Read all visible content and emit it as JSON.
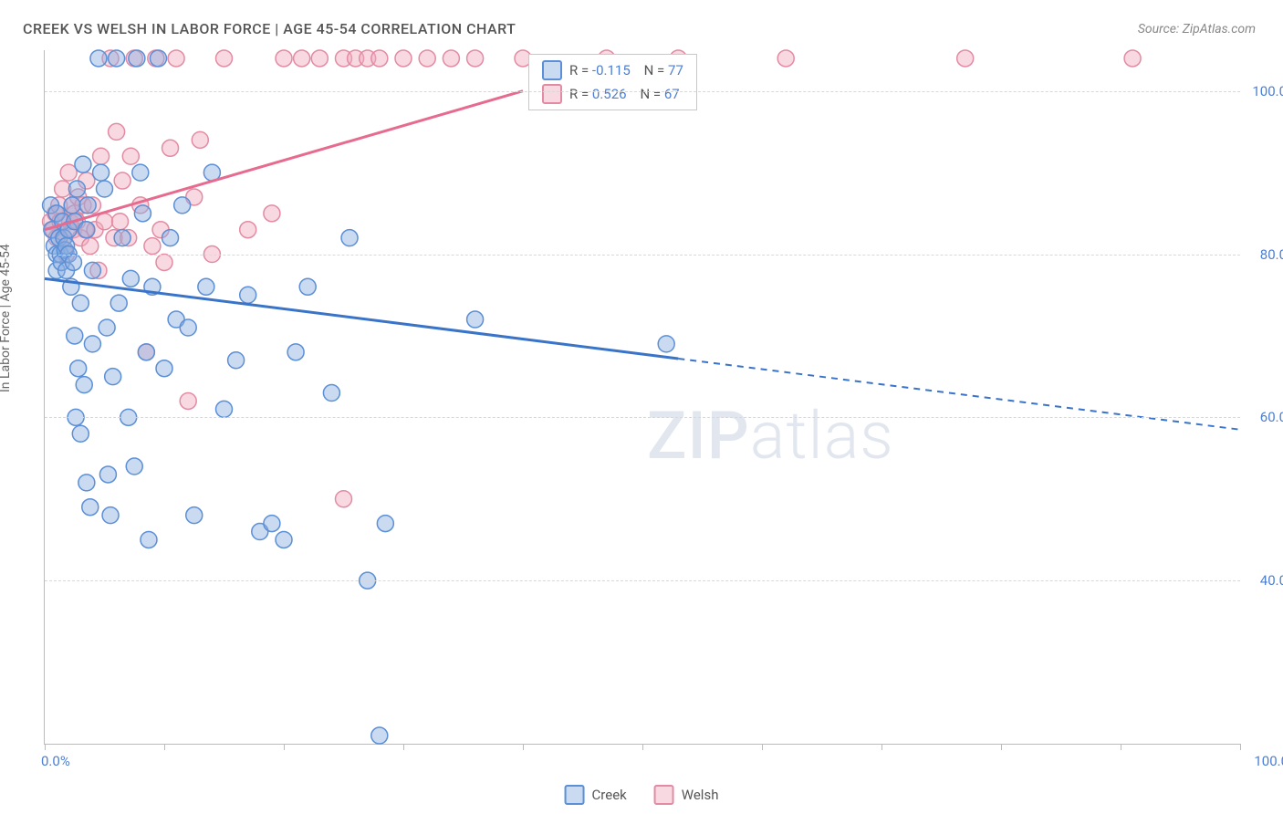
{
  "title": "CREEK VS WELSH IN LABOR FORCE | AGE 45-54 CORRELATION CHART",
  "source": "Source: ZipAtlas.com",
  "ylabel": "In Labor Force | Age 45-54",
  "watermark_parts": [
    "ZIP",
    "atlas"
  ],
  "axes": {
    "xlim": [
      0,
      100
    ],
    "ylim": [
      20,
      105
    ],
    "xtick_labels": {
      "left": "0.0%",
      "right": "100.0%"
    },
    "xtick_positions": [
      0,
      10,
      20,
      30,
      40,
      50,
      60,
      70,
      80,
      90,
      100
    ],
    "ytick_labels": [
      "40.0%",
      "60.0%",
      "80.0%",
      "100.0%"
    ],
    "ytick_values": [
      40,
      60,
      80,
      100
    ],
    "grid_color": "#d8d8d8",
    "axis_color": "#bbbbbb",
    "tick_label_color": "#4a7fd6",
    "tick_fontsize": 15,
    "label_fontsize": 14
  },
  "series": {
    "creek": {
      "label": "Creek",
      "color_stroke": "#5b8fd6",
      "color_fill": "rgba(137,173,224,0.45)",
      "marker_radius": 9,
      "line_color": "#3a74c9",
      "line_width": 3,
      "regression": {
        "x1": 0,
        "y1": 77,
        "x2": 100,
        "y2": 58.5,
        "solid_until_x": 53
      },
      "R_label": "R = ",
      "R_value": "-0.115",
      "N_label": "N = ",
      "N_value": "77",
      "points": [
        [
          0.5,
          86
        ],
        [
          0.6,
          83
        ],
        [
          0.8,
          81
        ],
        [
          1.0,
          80
        ],
        [
          1.0,
          78
        ],
        [
          1.0,
          85
        ],
        [
          1.2,
          82
        ],
        [
          1.3,
          80
        ],
        [
          1.4,
          79
        ],
        [
          1.5,
          84
        ],
        [
          1.6,
          82
        ],
        [
          1.7,
          80.5
        ],
        [
          1.8,
          78
        ],
        [
          1.8,
          81
        ],
        [
          2.0,
          83
        ],
        [
          2.0,
          80
        ],
        [
          2.2,
          76
        ],
        [
          2.3,
          86
        ],
        [
          2.4,
          79
        ],
        [
          2.5,
          70
        ],
        [
          2.5,
          84
        ],
        [
          2.6,
          60
        ],
        [
          2.7,
          88
        ],
        [
          2.8,
          66
        ],
        [
          3.0,
          58
        ],
        [
          3.0,
          74
        ],
        [
          3.2,
          91
        ],
        [
          3.3,
          64
        ],
        [
          3.5,
          52
        ],
        [
          3.5,
          83
        ],
        [
          3.6,
          86
        ],
        [
          3.8,
          49
        ],
        [
          4.0,
          69
        ],
        [
          4.0,
          78
        ],
        [
          4.5,
          104
        ],
        [
          4.7,
          90
        ],
        [
          5.0,
          88
        ],
        [
          5.2,
          71
        ],
        [
          5.3,
          53
        ],
        [
          5.5,
          48
        ],
        [
          5.7,
          65
        ],
        [
          6.0,
          104
        ],
        [
          6.2,
          74
        ],
        [
          6.5,
          82
        ],
        [
          7.0,
          60
        ],
        [
          7.2,
          77
        ],
        [
          7.5,
          54
        ],
        [
          7.7,
          104
        ],
        [
          8.0,
          90
        ],
        [
          8.2,
          85
        ],
        [
          8.5,
          68
        ],
        [
          8.7,
          45
        ],
        [
          9.0,
          76
        ],
        [
          9.5,
          104
        ],
        [
          10.0,
          66
        ],
        [
          10.5,
          82
        ],
        [
          11.0,
          72
        ],
        [
          11.5,
          86
        ],
        [
          12.0,
          71
        ],
        [
          12.5,
          48
        ],
        [
          13.5,
          76
        ],
        [
          14.0,
          90
        ],
        [
          15.0,
          61
        ],
        [
          16.0,
          67
        ],
        [
          17.0,
          75
        ],
        [
          18.0,
          46
        ],
        [
          19.0,
          47
        ],
        [
          20.0,
          45
        ],
        [
          21.0,
          68
        ],
        [
          22.0,
          76
        ],
        [
          24.0,
          63
        ],
        [
          25.5,
          82
        ],
        [
          27.0,
          40
        ],
        [
          28.5,
          47
        ],
        [
          28.0,
          21
        ],
        [
          36.0,
          72
        ],
        [
          52.0,
          69
        ]
      ]
    },
    "welsh": {
      "label": "Welsh",
      "color_stroke": "#e38ba3",
      "color_fill": "rgba(240,170,190,0.45)",
      "marker_radius": 9,
      "line_color": "#e76a8f",
      "line_width": 3,
      "regression": {
        "x1": 0,
        "y1": 83,
        "x2": 40,
        "y2": 100,
        "solid_until_x": 40
      },
      "R_label": "R = ",
      "R_value": "0.526",
      "N_label": "N = ",
      "N_value": "67",
      "points": [
        [
          0.5,
          84
        ],
        [
          0.7,
          83
        ],
        [
          0.9,
          85
        ],
        [
          1.0,
          82
        ],
        [
          1.2,
          86
        ],
        [
          1.3,
          84
        ],
        [
          1.5,
          88
        ],
        [
          1.6,
          82
        ],
        [
          1.8,
          80
        ],
        [
          2.0,
          90
        ],
        [
          2.1,
          84
        ],
        [
          2.3,
          86
        ],
        [
          2.4,
          83
        ],
        [
          2.5,
          85
        ],
        [
          2.7,
          84
        ],
        [
          2.8,
          87
        ],
        [
          3.0,
          82
        ],
        [
          3.2,
          86
        ],
        [
          3.4,
          83
        ],
        [
          3.5,
          89
        ],
        [
          3.8,
          81
        ],
        [
          4.0,
          86
        ],
        [
          4.2,
          83
        ],
        [
          4.5,
          78
        ],
        [
          4.7,
          92
        ],
        [
          5.0,
          84
        ],
        [
          5.5,
          104
        ],
        [
          5.8,
          82
        ],
        [
          6.0,
          95
        ],
        [
          6.3,
          84
        ],
        [
          6.5,
          89
        ],
        [
          7.0,
          82
        ],
        [
          7.2,
          92
        ],
        [
          7.5,
          104
        ],
        [
          8.0,
          86
        ],
        [
          8.5,
          68
        ],
        [
          9.0,
          81
        ],
        [
          9.3,
          104
        ],
        [
          9.7,
          83
        ],
        [
          10.0,
          79
        ],
        [
          10.5,
          93
        ],
        [
          11.0,
          104
        ],
        [
          12.0,
          62
        ],
        [
          12.5,
          87
        ],
        [
          13.0,
          94
        ],
        [
          14.0,
          80
        ],
        [
          15.0,
          104
        ],
        [
          17.0,
          83
        ],
        [
          19.0,
          85
        ],
        [
          20.0,
          104
        ],
        [
          21.5,
          104
        ],
        [
          23.0,
          104
        ],
        [
          25.0,
          104
        ],
        [
          26.0,
          104
        ],
        [
          27.0,
          104
        ],
        [
          28.0,
          104
        ],
        [
          30.0,
          104
        ],
        [
          32.0,
          104
        ],
        [
          34.0,
          104
        ],
        [
          36.0,
          104
        ],
        [
          40.0,
          104
        ],
        [
          47.0,
          104
        ],
        [
          53.0,
          104
        ],
        [
          62.0,
          104
        ],
        [
          77.0,
          104
        ],
        [
          91.0,
          104
        ],
        [
          25.0,
          50
        ]
      ]
    }
  },
  "legend_box": {
    "border_color": "#c8c8c8",
    "background": "#ffffff",
    "label_color": "#555555",
    "value_color": "#4a7fd6",
    "fontsize": 15
  }
}
